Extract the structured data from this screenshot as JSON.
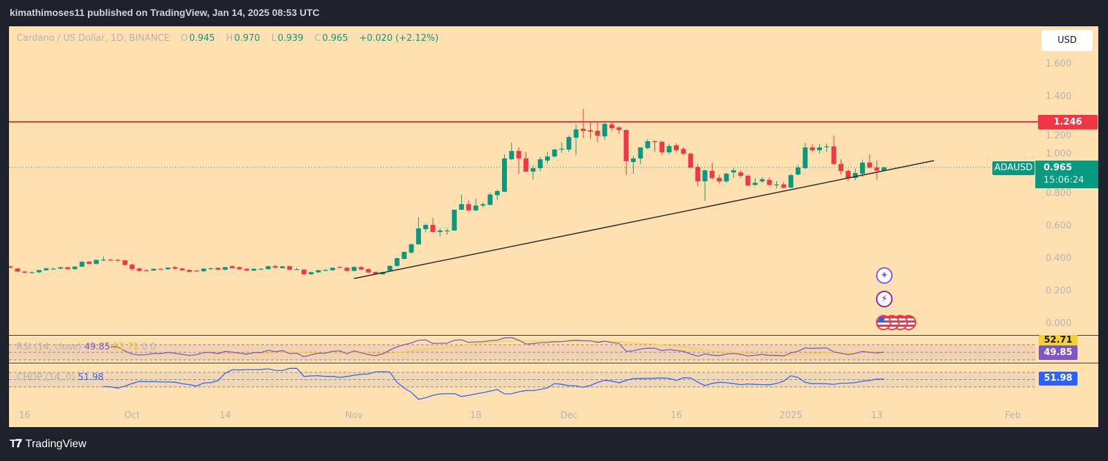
{
  "header": {
    "title": "kimathimoses11 published on TradingView, Jan 14, 2025 08:53 UTC"
  },
  "legend": {
    "symbol": "Cardano / US Dollar, 1D, BINANCE",
    "o_label": "O",
    "o": "0.945",
    "h_label": "H",
    "h": "0.970",
    "l_label": "L",
    "l": "0.939",
    "c_label": "C",
    "c": "0.965",
    "change": "+0.020 (+2.12%)"
  },
  "currency": "USD",
  "price_axis": [
    "1.600",
    "1.400",
    "1.200",
    "1.000",
    "0.800",
    "0.600",
    "0.400",
    "0.200",
    "0.000"
  ],
  "time_axis": [
    {
      "label": "16",
      "date": "2024-09-16"
    },
    {
      "label": "Oct",
      "date": "2024-10-01"
    },
    {
      "label": "14",
      "date": "2024-10-14"
    },
    {
      "label": "Nov",
      "date": "2024-11-01"
    },
    {
      "label": "18",
      "date": "2024-11-18"
    },
    {
      "label": "Dec",
      "date": "2024-12-01"
    },
    {
      "label": "16",
      "date": "2024-12-16"
    },
    {
      "label": "2025",
      "date": "2025-01-01"
    },
    {
      "label": "13",
      "date": "2025-01-13"
    },
    {
      "label": "Feb",
      "date": "2025-02-01"
    }
  ],
  "horizontal_line": {
    "price": 1.246,
    "label": "1.246",
    "color": "#f23645"
  },
  "last_price": {
    "symbol": "ADAUSD",
    "price": "0.965",
    "countdown": "15:06:24",
    "color": "#089981"
  },
  "rsi": {
    "label": "RSI (14, close)",
    "value": "49.85",
    "ma": "52.71",
    "extra1": "0",
    "extra2": "0",
    "color": "#7e57c2",
    "ma_color": "#f7d22a",
    "levels": [
      70,
      50,
      30
    ]
  },
  "chop": {
    "label": "CHOP (14, 0)",
    "value": "51.98",
    "color": "#2962ff",
    "levels": [
      61.8,
      50,
      38.2
    ]
  },
  "icons": [
    "sparkle-icon",
    "lightning-icon",
    "us-flag-icon"
  ],
  "footer": {
    "brand": "TradingView"
  },
  "colors": {
    "up": "#089981",
    "down": "#f23645",
    "background": "#ffe0b1",
    "frame": "#1e222d"
  },
  "chart_data": {
    "type": "candlestick",
    "title": "Cardano / US Dollar, 1D, BINANCE",
    "ylim": [
      0,
      1.6
    ],
    "grid": false,
    "trendline": [
      [
        "2024-11-01",
        0.28
      ],
      [
        "2025-01-21",
        1.007
      ]
    ],
    "candles_format": [
      "date",
      "open",
      "high",
      "low",
      "close"
    ],
    "candles": [
      [
        "2024-09-14",
        0.355,
        0.36,
        0.345,
        0.347
      ],
      [
        "2024-09-15",
        0.342,
        0.345,
        0.32,
        0.323
      ],
      [
        "2024-09-16",
        0.323,
        0.326,
        0.313,
        0.316
      ],
      [
        "2024-09-17",
        0.317,
        0.325,
        0.314,
        0.318
      ],
      [
        "2024-09-18",
        0.318,
        0.334,
        0.315,
        0.332
      ],
      [
        "2024-09-19",
        0.331,
        0.346,
        0.328,
        0.343
      ],
      [
        "2024-09-20",
        0.338,
        0.348,
        0.334,
        0.341
      ],
      [
        "2024-09-21",
        0.341,
        0.352,
        0.337,
        0.349
      ],
      [
        "2024-09-22",
        0.349,
        0.353,
        0.336,
        0.338
      ],
      [
        "2024-09-23",
        0.338,
        0.356,
        0.334,
        0.353
      ],
      [
        "2024-09-24",
        0.353,
        0.388,
        0.35,
        0.383
      ],
      [
        "2024-09-25",
        0.383,
        0.388,
        0.368,
        0.371
      ],
      [
        "2024-09-26",
        0.37,
        0.396,
        0.367,
        0.395
      ],
      [
        "2024-09-27",
        0.395,
        0.415,
        0.388,
        0.396
      ],
      [
        "2024-09-28",
        0.396,
        0.401,
        0.39,
        0.394
      ],
      [
        "2024-09-29",
        0.394,
        0.4,
        0.389,
        0.393
      ],
      [
        "2024-09-30",
        0.392,
        0.395,
        0.36,
        0.364
      ],
      [
        "2024-10-01",
        0.366,
        0.372,
        0.33,
        0.338
      ],
      [
        "2024-10-02",
        0.342,
        0.346,
        0.322,
        0.327
      ],
      [
        "2024-10-03",
        0.331,
        0.337,
        0.323,
        0.33
      ],
      [
        "2024-10-04",
        0.329,
        0.342,
        0.326,
        0.34
      ],
      [
        "2024-10-05",
        0.339,
        0.344,
        0.334,
        0.338
      ],
      [
        "2024-10-06",
        0.337,
        0.35,
        0.334,
        0.347
      ],
      [
        "2024-10-07",
        0.35,
        0.356,
        0.337,
        0.34
      ],
      [
        "2024-10-08",
        0.342,
        0.346,
        0.328,
        0.331
      ],
      [
        "2024-10-09",
        0.333,
        0.336,
        0.32,
        0.322
      ],
      [
        "2024-10-10",
        0.328,
        0.333,
        0.324,
        0.327
      ],
      [
        "2024-10-11",
        0.325,
        0.342,
        0.322,
        0.341
      ],
      [
        "2024-10-12",
        0.338,
        0.347,
        0.335,
        0.343
      ],
      [
        "2024-10-13",
        0.345,
        0.349,
        0.332,
        0.334
      ],
      [
        "2024-10-14",
        0.334,
        0.353,
        0.331,
        0.35
      ],
      [
        "2024-10-15",
        0.356,
        0.361,
        0.341,
        0.344
      ],
      [
        "2024-10-16",
        0.35,
        0.355,
        0.334,
        0.338
      ],
      [
        "2024-10-17",
        0.34,
        0.344,
        0.326,
        0.329
      ],
      [
        "2024-10-18",
        0.329,
        0.342,
        0.326,
        0.34
      ],
      [
        "2024-10-19",
        0.335,
        0.343,
        0.332,
        0.34
      ],
      [
        "2024-10-20",
        0.338,
        0.358,
        0.335,
        0.356
      ],
      [
        "2024-10-21",
        0.356,
        0.364,
        0.344,
        0.347
      ],
      [
        "2024-10-22",
        0.344,
        0.357,
        0.341,
        0.355
      ],
      [
        "2024-10-23",
        0.356,
        0.358,
        0.331,
        0.334
      ],
      [
        "2024-10-24",
        0.336,
        0.345,
        0.332,
        0.337
      ],
      [
        "2024-10-25",
        0.335,
        0.338,
        0.3,
        0.306
      ],
      [
        "2024-10-26",
        0.306,
        0.322,
        0.302,
        0.319
      ],
      [
        "2024-10-27",
        0.318,
        0.334,
        0.315,
        0.331
      ],
      [
        "2024-10-28",
        0.331,
        0.34,
        0.327,
        0.332
      ],
      [
        "2024-10-29",
        0.331,
        0.348,
        0.328,
        0.346
      ],
      [
        "2024-10-30",
        0.351,
        0.356,
        0.346,
        0.35
      ],
      [
        "2024-10-31",
        0.346,
        0.352,
        0.324,
        0.327
      ],
      [
        "2024-11-01",
        0.327,
        0.355,
        0.324,
        0.351
      ],
      [
        "2024-11-02",
        0.351,
        0.356,
        0.333,
        0.335
      ],
      [
        "2024-11-03",
        0.338,
        0.342,
        0.314,
        0.317
      ],
      [
        "2024-11-04",
        0.32,
        0.322,
        0.305,
        0.306
      ],
      [
        "2024-11-05",
        0.306,
        0.322,
        0.303,
        0.32
      ],
      [
        "2024-11-06",
        0.328,
        0.362,
        0.325,
        0.358
      ],
      [
        "2024-11-07",
        0.358,
        0.41,
        0.352,
        0.405
      ],
      [
        "2024-11-08",
        0.401,
        0.446,
        0.398,
        0.444
      ],
      [
        "2024-11-09",
        0.44,
        0.497,
        0.432,
        0.491
      ],
      [
        "2024-11-10",
        0.491,
        0.657,
        0.488,
        0.589
      ],
      [
        "2024-11-11",
        0.584,
        0.618,
        0.566,
        0.61
      ],
      [
        "2024-11-12",
        0.61,
        0.653,
        0.565,
        0.567
      ],
      [
        "2024-11-13",
        0.567,
        0.59,
        0.54,
        0.576
      ],
      [
        "2024-11-14",
        0.576,
        0.587,
        0.55,
        0.576
      ],
      [
        "2024-11-15",
        0.576,
        0.704,
        0.574,
        0.704
      ],
      [
        "2024-11-16",
        0.704,
        0.797,
        0.7,
        0.738
      ],
      [
        "2024-11-17",
        0.738,
        0.76,
        0.69,
        0.7
      ],
      [
        "2024-11-18",
        0.7,
        0.772,
        0.694,
        0.73
      ],
      [
        "2024-11-19",
        0.73,
        0.748,
        0.718,
        0.738
      ],
      [
        "2024-11-20",
        0.734,
        0.81,
        0.73,
        0.798
      ],
      [
        "2024-11-21",
        0.794,
        0.83,
        0.764,
        0.819
      ],
      [
        "2024-11-22",
        0.815,
        1.045,
        0.813,
        1.02
      ],
      [
        "2024-11-23",
        1.015,
        1.117,
        1.01,
        1.066
      ],
      [
        "2024-11-24",
        1.066,
        1.09,
        0.925,
        1.02
      ],
      [
        "2024-11-25",
        1.02,
        1.06,
        0.935,
        0.939
      ],
      [
        "2024-11-26",
        0.939,
        0.977,
        0.89,
        0.96
      ],
      [
        "2024-11-27",
        0.96,
        1.03,
        0.94,
        1.015
      ],
      [
        "2024-11-28",
        1.007,
        1.06,
        0.99,
        1.032
      ],
      [
        "2024-11-29",
        1.032,
        1.08,
        1.025,
        1.075
      ],
      [
        "2024-11-30",
        1.075,
        1.12,
        1.055,
        1.08
      ],
      [
        "2024-12-01",
        1.075,
        1.16,
        1.06,
        1.152
      ],
      [
        "2024-12-02",
        1.148,
        1.23,
        1.04,
        1.199
      ],
      [
        "2024-12-03",
        1.203,
        1.327,
        1.145,
        1.19
      ],
      [
        "2024-12-04",
        1.194,
        1.25,
        1.14,
        1.186
      ],
      [
        "2024-12-05",
        1.19,
        1.25,
        1.12,
        1.16
      ],
      [
        "2024-12-06",
        1.156,
        1.25,
        1.135,
        1.233
      ],
      [
        "2024-12-07",
        1.229,
        1.25,
        1.19,
        1.207
      ],
      [
        "2024-12-08",
        1.211,
        1.22,
        1.17,
        1.195
      ],
      [
        "2024-12-09",
        1.195,
        1.2,
        0.917,
        1.003
      ],
      [
        "2024-12-10",
        0.998,
        1.035,
        0.925,
        1.02
      ],
      [
        "2024-12-11",
        1.02,
        1.085,
        0.985,
        1.088
      ],
      [
        "2024-12-12",
        1.084,
        1.14,
        1.075,
        1.126
      ],
      [
        "2024-12-13",
        1.126,
        1.13,
        1.06,
        1.122
      ],
      [
        "2024-12-14",
        1.122,
        1.13,
        1.04,
        1.058
      ],
      [
        "2024-12-15",
        1.058,
        1.11,
        1.045,
        1.096
      ],
      [
        "2024-12-16",
        1.101,
        1.115,
        1.06,
        1.071
      ],
      [
        "2024-12-17",
        1.079,
        1.092,
        1.04,
        1.049
      ],
      [
        "2024-12-18",
        1.049,
        1.056,
        0.96,
        0.964
      ],
      [
        "2024-12-19",
        0.968,
        0.986,
        0.849,
        0.879
      ],
      [
        "2024-12-20",
        0.879,
        0.95,
        0.759,
        0.947
      ],
      [
        "2024-12-21",
        0.943,
        0.994,
        0.89,
        0.9
      ],
      [
        "2024-12-22",
        0.9,
        0.92,
        0.865,
        0.879
      ],
      [
        "2024-12-23",
        0.879,
        0.932,
        0.87,
        0.926
      ],
      [
        "2024-12-24",
        0.934,
        0.96,
        0.9,
        0.947
      ],
      [
        "2024-12-25",
        0.934,
        0.947,
        0.9,
        0.913
      ],
      [
        "2024-12-26",
        0.913,
        0.92,
        0.85,
        0.853
      ],
      [
        "2024-12-27",
        0.857,
        0.9,
        0.85,
        0.87
      ],
      [
        "2024-12-28",
        0.879,
        0.905,
        0.87,
        0.892
      ],
      [
        "2024-12-29",
        0.887,
        0.905,
        0.85,
        0.858
      ],
      [
        "2024-12-30",
        0.858,
        0.88,
        0.835,
        0.86
      ],
      [
        "2024-12-31",
        0.86,
        0.875,
        0.835,
        0.84
      ],
      [
        "2025-01-01",
        0.84,
        0.925,
        0.838,
        0.917
      ],
      [
        "2025-01-02",
        0.921,
        0.98,
        0.915,
        0.964
      ],
      [
        "2025-01-03",
        0.96,
        1.115,
        0.955,
        1.088
      ],
      [
        "2025-01-04",
        1.088,
        1.11,
        1.06,
        1.071
      ],
      [
        "2025-01-05",
        1.071,
        1.11,
        1.05,
        1.088
      ],
      [
        "2025-01-06",
        1.09,
        1.112,
        1.06,
        1.094
      ],
      [
        "2025-01-07",
        1.094,
        1.16,
        0.98,
        0.986
      ],
      [
        "2025-01-08",
        0.986,
        1.015,
        0.92,
        0.943
      ],
      [
        "2025-01-09",
        0.943,
        0.955,
        0.88,
        0.9
      ],
      [
        "2025-01-10",
        0.9,
        0.958,
        0.885,
        0.93
      ],
      [
        "2025-01-11",
        0.926,
        1.01,
        0.905,
        0.994
      ],
      [
        "2025-01-12",
        0.994,
        1.046,
        0.96,
        0.964
      ],
      [
        "2025-01-13",
        0.964,
        1.01,
        0.89,
        0.945
      ],
      [
        "2025-01-14",
        0.945,
        0.97,
        0.939,
        0.965
      ]
    ]
  }
}
